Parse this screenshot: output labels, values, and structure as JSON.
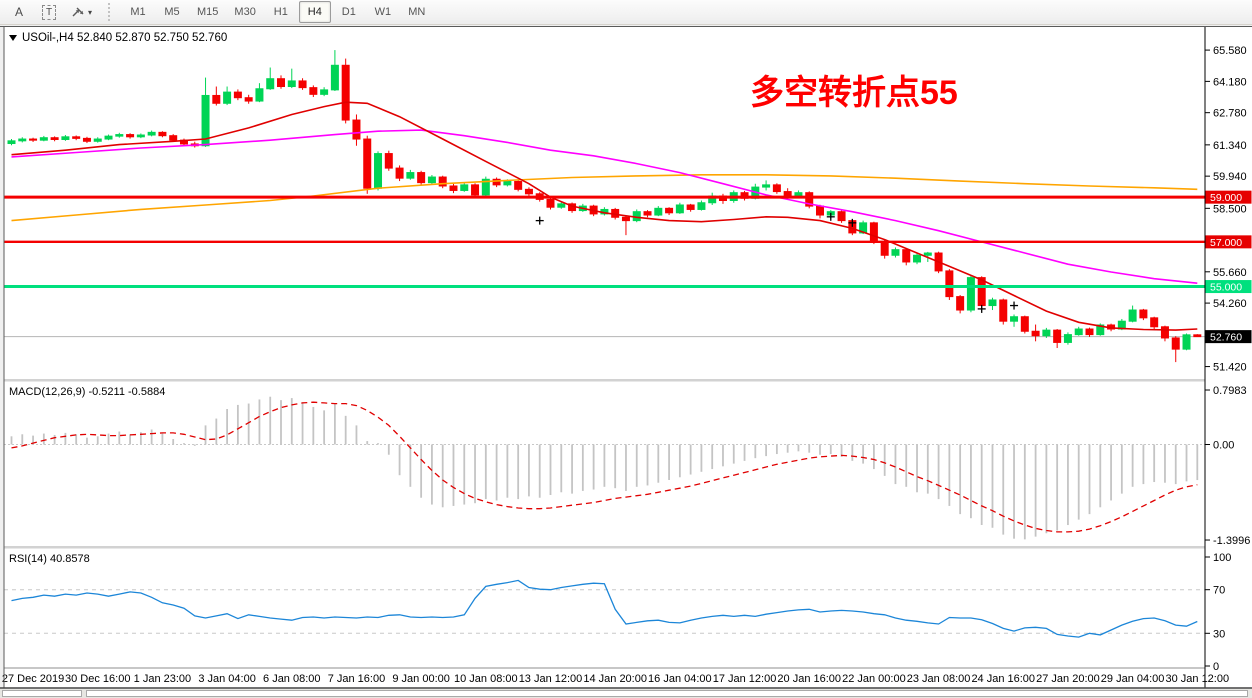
{
  "toolbar": {
    "tool_a": "A",
    "tool_t": "T",
    "timeframes": [
      "M1",
      "M5",
      "M15",
      "M30",
      "H1",
      "H4",
      "D1",
      "W1",
      "MN"
    ],
    "active_timeframe": "H4"
  },
  "chart": {
    "title_text": "USOil-,H4 52.840 52.870 52.750 52.760",
    "annotation": {
      "text": "多空转折点55",
      "color": "#ff0000"
    },
    "price_axis": {
      "ticks": [
        "65.580",
        "64.180",
        "62.780",
        "61.340",
        "59.940",
        "58.500",
        "55.660",
        "54.260",
        "51.420"
      ],
      "badges": [
        {
          "label": "59.000",
          "price": 59.0,
          "bg": "#e60000",
          "fg": "#ffffff"
        },
        {
          "label": "57.000",
          "price": 57.0,
          "bg": "#e60000",
          "fg": "#ffffff"
        },
        {
          "label": "55.000",
          "price": 55.0,
          "bg": "#00e07e",
          "fg": "#ffffff"
        },
        {
          "label": "52.760",
          "price": 52.76,
          "bg": "#000000",
          "fg": "#ffffff"
        }
      ]
    },
    "time_axis": {
      "labels": [
        "27 Dec 2019",
        "30 Dec 16:00",
        "1 Jan 23:00",
        "3 Jan 04:00",
        "6 Jan 08:00",
        "7 Jan 16:00",
        "9 Jan 00:00",
        "10 Jan 08:00",
        "13 Jan 12:00",
        "14 Jan 20:00",
        "16 Jan 04:00",
        "17 Jan 12:00",
        "20 Jan 16:00",
        "22 Jan 00:00",
        "23 Jan 08:00",
        "24 Jan 16:00",
        "27 Jan 20:00",
        "29 Jan 04:00",
        "30 Jan 12:00"
      ],
      "bar_indices": [
        2,
        8,
        14,
        20,
        26,
        32,
        38,
        44,
        50,
        56,
        62,
        68,
        74,
        80,
        86,
        92,
        98,
        104,
        110
      ]
    },
    "hlines": [
      {
        "price": 59.0,
        "color": "#f40000",
        "width": 3
      },
      {
        "price": 57.0,
        "color": "#f40000",
        "width": 2.4
      },
      {
        "price": 55.0,
        "color": "#00e07e",
        "width": 3
      }
    ],
    "bid_line": {
      "price": 52.76,
      "label": "52.760",
      "color": "#b4b4b4"
    }
  },
  "chart_data": {
    "type": "candlestick+indicators",
    "symbol": "USOil-",
    "period": "H4",
    "candles": [
      [
        61.4,
        61.6,
        61.32,
        61.52
      ],
      [
        61.52,
        61.68,
        61.45,
        61.6
      ],
      [
        61.6,
        61.66,
        61.47,
        61.55
      ],
      [
        61.55,
        61.74,
        61.5,
        61.66
      ],
      [
        61.66,
        61.72,
        61.5,
        61.58
      ],
      [
        61.58,
        61.78,
        61.52,
        61.7
      ],
      [
        61.7,
        61.76,
        61.55,
        61.63
      ],
      [
        61.63,
        61.7,
        61.42,
        61.5
      ],
      [
        61.5,
        61.68,
        61.44,
        61.6
      ],
      [
        61.6,
        61.8,
        61.55,
        61.73
      ],
      [
        61.73,
        61.88,
        61.66,
        61.8
      ],
      [
        61.8,
        61.86,
        61.62,
        61.7
      ],
      [
        61.7,
        61.85,
        61.64,
        61.78
      ],
      [
        61.78,
        61.98,
        61.72,
        61.9
      ],
      [
        61.9,
        61.95,
        61.68,
        61.75
      ],
      [
        61.75,
        61.82,
        61.48,
        61.55
      ],
      [
        61.55,
        61.62,
        61.3,
        61.38
      ],
      [
        61.38,
        61.48,
        61.22,
        61.3
      ],
      [
        61.3,
        64.35,
        61.25,
        63.55
      ],
      [
        63.55,
        63.95,
        63.1,
        63.2
      ],
      [
        63.2,
        63.95,
        63.12,
        63.7
      ],
      [
        63.7,
        63.82,
        63.34,
        63.45
      ],
      [
        63.45,
        63.58,
        63.18,
        63.3
      ],
      [
        63.3,
        64.1,
        63.25,
        63.85
      ],
      [
        63.85,
        64.8,
        63.8,
        64.3
      ],
      [
        64.3,
        64.45,
        63.85,
        63.95
      ],
      [
        63.95,
        64.75,
        63.88,
        64.2
      ],
      [
        64.2,
        64.32,
        63.8,
        63.9
      ],
      [
        63.9,
        64.0,
        63.48,
        63.6
      ],
      [
        63.6,
        63.92,
        63.52,
        63.8
      ],
      [
        63.8,
        65.58,
        63.75,
        64.9
      ],
      [
        64.9,
        65.2,
        62.3,
        62.45
      ],
      [
        62.45,
        62.7,
        61.3,
        61.6
      ],
      [
        61.6,
        61.75,
        59.15,
        59.4
      ],
      [
        59.4,
        61.05,
        59.3,
        60.95
      ],
      [
        60.95,
        61.08,
        60.18,
        60.3
      ],
      [
        60.3,
        60.42,
        59.72,
        59.85
      ],
      [
        59.85,
        60.22,
        59.78,
        60.1
      ],
      [
        60.1,
        60.18,
        59.52,
        59.65
      ],
      [
        59.65,
        59.99,
        59.58,
        59.9
      ],
      [
        59.9,
        59.96,
        59.4,
        59.5
      ],
      [
        59.5,
        59.6,
        59.18,
        59.3
      ],
      [
        59.3,
        59.66,
        59.24,
        59.55
      ],
      [
        59.55,
        59.62,
        59.0,
        59.1
      ],
      [
        59.1,
        59.92,
        58.98,
        59.8
      ],
      [
        59.8,
        59.88,
        59.45,
        59.55
      ],
      [
        59.55,
        59.8,
        59.48,
        59.7
      ],
      [
        59.7,
        59.76,
        59.26,
        59.35
      ],
      [
        59.35,
        59.44,
        59.05,
        59.15
      ],
      [
        59.15,
        59.22,
        58.8,
        58.9
      ],
      [
        58.9,
        58.98,
        58.45,
        58.55
      ],
      [
        58.55,
        58.8,
        58.48,
        58.7
      ],
      [
        58.7,
        58.76,
        58.3,
        58.4
      ],
      [
        58.4,
        58.7,
        58.34,
        58.6
      ],
      [
        58.6,
        58.66,
        58.15,
        58.25
      ],
      [
        58.25,
        58.55,
        58.18,
        58.45
      ],
      [
        58.45,
        58.52,
        58.0,
        58.1
      ],
      [
        58.1,
        58.18,
        57.3,
        57.95
      ],
      [
        57.95,
        58.45,
        57.88,
        58.35
      ],
      [
        58.35,
        58.42,
        58.1,
        58.2
      ],
      [
        58.2,
        58.6,
        58.15,
        58.5
      ],
      [
        58.5,
        58.55,
        58.2,
        58.3
      ],
      [
        58.3,
        58.75,
        58.25,
        58.65
      ],
      [
        58.65,
        58.7,
        58.35,
        58.45
      ],
      [
        58.45,
        58.85,
        58.4,
        58.75
      ],
      [
        58.75,
        59.2,
        58.65,
        59.05
      ],
      [
        59.05,
        59.15,
        58.7,
        58.85
      ],
      [
        58.85,
        59.3,
        58.75,
        59.2
      ],
      [
        59.2,
        59.28,
        58.85,
        58.95
      ],
      [
        58.95,
        59.6,
        58.9,
        59.45
      ],
      [
        59.45,
        59.75,
        59.3,
        59.55
      ],
      [
        59.55,
        59.62,
        59.15,
        59.25
      ],
      [
        59.25,
        59.4,
        58.9,
        59.0
      ],
      [
        59.0,
        59.3,
        58.95,
        59.2
      ],
      [
        59.2,
        59.26,
        58.5,
        58.6
      ],
      [
        58.6,
        58.66,
        58.05,
        58.2
      ],
      [
        58.2,
        58.42,
        58.05,
        58.35
      ],
      [
        58.35,
        58.4,
        57.85,
        57.95
      ],
      [
        57.95,
        58.0,
        57.3,
        57.4
      ],
      [
        57.4,
        57.95,
        57.35,
        57.85
      ],
      [
        57.85,
        57.9,
        56.9,
        57.0
      ],
      [
        57.0,
        57.08,
        56.25,
        56.4
      ],
      [
        56.4,
        56.75,
        56.3,
        56.65
      ],
      [
        56.65,
        56.7,
        55.95,
        56.1
      ],
      [
        56.1,
        56.5,
        56.0,
        56.4
      ],
      [
        56.4,
        56.55,
        56.1,
        56.5
      ],
      [
        56.5,
        56.56,
        55.6,
        55.7
      ],
      [
        55.7,
        55.78,
        54.4,
        54.55
      ],
      [
        54.55,
        54.62,
        53.8,
        53.95
      ],
      [
        53.95,
        55.5,
        53.85,
        55.4
      ],
      [
        55.4,
        55.46,
        54.0,
        54.15
      ],
      [
        54.15,
        54.5,
        53.95,
        54.4
      ],
      [
        54.4,
        54.46,
        53.3,
        53.45
      ],
      [
        53.45,
        53.75,
        53.2,
        53.65
      ],
      [
        53.65,
        53.7,
        52.9,
        53.0
      ],
      [
        53.0,
        53.3,
        52.55,
        52.8
      ],
      [
        52.8,
        53.15,
        52.7,
        53.05
      ],
      [
        53.05,
        53.1,
        52.25,
        52.5
      ],
      [
        52.5,
        52.95,
        52.4,
        52.85
      ],
      [
        52.85,
        53.2,
        52.8,
        53.1
      ],
      [
        53.1,
        53.16,
        52.75,
        52.85
      ],
      [
        52.85,
        53.35,
        52.8,
        53.28
      ],
      [
        53.28,
        53.34,
        53.0,
        53.1
      ],
      [
        53.1,
        53.55,
        53.05,
        53.45
      ],
      [
        53.45,
        54.15,
        53.4,
        53.95
      ],
      [
        53.95,
        54.0,
        53.5,
        53.6
      ],
      [
        53.6,
        53.65,
        53.1,
        53.2
      ],
      [
        53.2,
        53.25,
        52.55,
        52.7
      ],
      [
        52.7,
        52.78,
        51.62,
        52.2
      ],
      [
        52.2,
        52.9,
        52.15,
        52.84
      ],
      [
        52.84,
        52.87,
        52.75,
        52.76
      ]
    ],
    "doji_markers": [
      [
        49,
        57.95
      ],
      [
        76,
        58.12
      ],
      [
        78,
        57.85
      ],
      [
        90,
        54.0
      ],
      [
        93,
        54.15
      ]
    ],
    "ma_fast_red": [
      [
        0,
        60.9
      ],
      [
        5,
        61.1
      ],
      [
        10,
        61.35
      ],
      [
        15,
        61.5
      ],
      [
        18,
        61.6
      ],
      [
        22,
        62.1
      ],
      [
        26,
        62.7
      ],
      [
        29,
        63.05
      ],
      [
        31,
        63.25
      ],
      [
        33,
        63.2
      ],
      [
        36,
        62.6
      ],
      [
        40,
        61.6
      ],
      [
        44,
        60.6
      ],
      [
        48,
        59.6
      ],
      [
        50,
        59.0
      ],
      [
        52,
        58.6
      ],
      [
        55,
        58.3
      ],
      [
        58,
        58.1
      ],
      [
        61,
        57.95
      ],
      [
        64,
        57.9
      ],
      [
        67,
        58.0
      ],
      [
        70,
        58.12
      ],
      [
        72,
        58.1
      ],
      [
        75,
        57.95
      ],
      [
        78,
        57.6
      ],
      [
        81,
        57.1
      ],
      [
        84,
        56.5
      ],
      [
        87,
        55.9
      ],
      [
        90,
        55.3
      ],
      [
        93,
        54.6
      ],
      [
        96,
        53.9
      ],
      [
        99,
        53.4
      ],
      [
        102,
        53.15
      ],
      [
        105,
        53.08
      ],
      [
        108,
        53.05
      ],
      [
        110,
        53.1
      ]
    ],
    "ma_mid_magenta": [
      [
        0,
        60.8
      ],
      [
        6,
        61.0
      ],
      [
        12,
        61.2
      ],
      [
        18,
        61.35
      ],
      [
        24,
        61.55
      ],
      [
        30,
        61.8
      ],
      [
        34,
        61.95
      ],
      [
        38,
        62.0
      ],
      [
        42,
        61.75
      ],
      [
        46,
        61.45
      ],
      [
        50,
        61.1
      ],
      [
        54,
        60.85
      ],
      [
        58,
        60.5
      ],
      [
        62,
        60.1
      ],
      [
        66,
        59.6
      ],
      [
        70,
        59.1
      ],
      [
        74,
        58.7
      ],
      [
        78,
        58.35
      ],
      [
        82,
        57.95
      ],
      [
        86,
        57.5
      ],
      [
        90,
        57.0
      ],
      [
        94,
        56.5
      ],
      [
        98,
        56.0
      ],
      [
        102,
        55.65
      ],
      [
        106,
        55.35
      ],
      [
        110,
        55.15
      ]
    ],
    "ma_slow_orange": [
      [
        0,
        57.95
      ],
      [
        6,
        58.2
      ],
      [
        12,
        58.45
      ],
      [
        18,
        58.65
      ],
      [
        24,
        58.85
      ],
      [
        28,
        59.05
      ],
      [
        34,
        59.4
      ],
      [
        40,
        59.6
      ],
      [
        46,
        59.75
      ],
      [
        52,
        59.88
      ],
      [
        58,
        59.95
      ],
      [
        64,
        60.0
      ],
      [
        70,
        60.0
      ],
      [
        76,
        59.95
      ],
      [
        82,
        59.85
      ],
      [
        88,
        59.72
      ],
      [
        94,
        59.6
      ],
      [
        100,
        59.5
      ],
      [
        106,
        59.42
      ],
      [
        110,
        59.35
      ]
    ],
    "macd": {
      "label": "MACD(12,26,9)",
      "values_text": "-0.5211 -0.5884",
      "scale_ticks": [
        "0.7983",
        "0.00",
        "-1.3996"
      ],
      "histogram": [
        0.12,
        0.15,
        0.13,
        0.16,
        0.14,
        0.17,
        0.15,
        0.1,
        0.12,
        0.16,
        0.19,
        0.15,
        0.18,
        0.22,
        0.16,
        0.08,
        0.02,
        -0.02,
        0.28,
        0.38,
        0.52,
        0.58,
        0.6,
        0.66,
        0.7,
        0.65,
        0.68,
        0.62,
        0.55,
        0.5,
        0.6,
        0.42,
        0.28,
        0.05,
        0.02,
        -0.15,
        -0.45,
        -0.62,
        -0.78,
        -0.88,
        -0.92,
        -0.9,
        -0.88,
        -0.86,
        -0.8,
        -0.82,
        -0.78,
        -0.8,
        -0.76,
        -0.78,
        -0.74,
        -0.7,
        -0.72,
        -0.68,
        -0.66,
        -0.62,
        -0.64,
        -0.68,
        -0.62,
        -0.6,
        -0.56,
        -0.52,
        -0.48,
        -0.44,
        -0.4,
        -0.36,
        -0.32,
        -0.28,
        -0.24,
        -0.2,
        -0.17,
        -0.14,
        -0.12,
        -0.1,
        -0.12,
        -0.15,
        -0.14,
        -0.18,
        -0.24,
        -0.28,
        -0.36,
        -0.46,
        -0.58,
        -0.62,
        -0.7,
        -0.72,
        -0.8,
        -0.9,
        -1.02,
        -1.08,
        -1.18,
        -1.22,
        -1.32,
        -1.38,
        -1.39,
        -1.35,
        -1.3,
        -1.26,
        -1.18,
        -1.1,
        -1.02,
        -0.92,
        -0.82,
        -0.72,
        -0.62,
        -0.58,
        -0.55,
        -0.56,
        -0.58,
        -0.54,
        -0.5211
      ],
      "signal": [
        -0.05,
        -0.02,
        0.02,
        0.06,
        0.1,
        0.12,
        0.14,
        0.15,
        0.14,
        0.13,
        0.13,
        0.14,
        0.15,
        0.16,
        0.17,
        0.17,
        0.15,
        0.11,
        0.07,
        0.08,
        0.14,
        0.23,
        0.32,
        0.41,
        0.48,
        0.54,
        0.58,
        0.61,
        0.62,
        0.61,
        0.6,
        0.6,
        0.57,
        0.5,
        0.4,
        0.28,
        0.12,
        -0.05,
        -0.22,
        -0.38,
        -0.52,
        -0.63,
        -0.72,
        -0.79,
        -0.84,
        -0.88,
        -0.91,
        -0.93,
        -0.94,
        -0.94,
        -0.93,
        -0.91,
        -0.89,
        -0.87,
        -0.85,
        -0.82,
        -0.79,
        -0.77,
        -0.75,
        -0.73,
        -0.7,
        -0.67,
        -0.64,
        -0.61,
        -0.57,
        -0.53,
        -0.49,
        -0.45,
        -0.41,
        -0.37,
        -0.33,
        -0.29,
        -0.26,
        -0.23,
        -0.2,
        -0.18,
        -0.17,
        -0.16,
        -0.17,
        -0.19,
        -0.22,
        -0.27,
        -0.33,
        -0.4,
        -0.47,
        -0.53,
        -0.6,
        -0.67,
        -0.74,
        -0.82,
        -0.9,
        -0.97,
        -1.05,
        -1.12,
        -1.18,
        -1.23,
        -1.26,
        -1.28,
        -1.28,
        -1.27,
        -1.24,
        -1.19,
        -1.13,
        -1.06,
        -0.98,
        -0.9,
        -0.82,
        -0.74,
        -0.67,
        -0.62,
        -0.5884
      ]
    },
    "rsi": {
      "label": "RSI(14)",
      "value_text": "40.8578",
      "levels": [
        70,
        30
      ],
      "scale_ticks": [
        "100",
        "70",
        "30",
        "0"
      ],
      "series": [
        60,
        62,
        63,
        65,
        64,
        66,
        65,
        67,
        66,
        64,
        66,
        68,
        67,
        63,
        58,
        56,
        53,
        46,
        44,
        46,
        48,
        43.5,
        47,
        45.5,
        44,
        43,
        42,
        44.5,
        45,
        44,
        45,
        44.5,
        44,
        45,
        44.5,
        46.5,
        47,
        45,
        44.5,
        45,
        44.5,
        45,
        47,
        62,
        73,
        75,
        76.5,
        78.5,
        72,
        70.5,
        70,
        72,
        73.5,
        75,
        76,
        75.5,
        52,
        38.5,
        40,
        41.5,
        42,
        40,
        39.5,
        42,
        44,
        45.5,
        46.5,
        45.5,
        46.5,
        45.5,
        47.5,
        49,
        50.5,
        51.5,
        52,
        49.5,
        50.5,
        51,
        50.5,
        49.5,
        48,
        47,
        44,
        42,
        41,
        39.5,
        38.5,
        44.5,
        44,
        44,
        42.5,
        39,
        34.5,
        32,
        35,
        35.5,
        34.5,
        29,
        27.5,
        26.5,
        30,
        28.5,
        33,
        37.5,
        41,
        43.5,
        44,
        41.5,
        37.5,
        36.5,
        40.86
      ]
    }
  },
  "colors": {
    "up": "#00d455",
    "down": "#f40000",
    "ma_fast": "#e00000",
    "ma_mid": "#ff00ff",
    "ma_slow": "#ffa500",
    "macd_hist": "#c4c4c4",
    "macd_signal": "#e00000",
    "rsi_line": "#1c86d8",
    "level_dash": "#c8c8c8",
    "text": "#000000"
  }
}
